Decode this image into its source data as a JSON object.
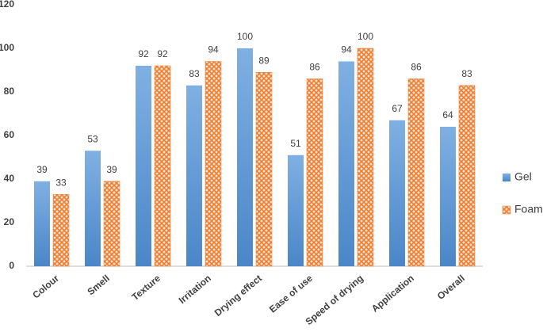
{
  "chart_data": {
    "type": "bar",
    "categories": [
      "Colour",
      "Smell",
      "Texture",
      "Irritation",
      "Drying effect",
      "Ease of use",
      "Speed of drying",
      "Application",
      "Overall"
    ],
    "series": [
      {
        "name": "Gel",
        "color": "#5b9bd5",
        "values": [
          39,
          53,
          92,
          83,
          100,
          51,
          94,
          67,
          64
        ]
      },
      {
        "name": "Foam",
        "color": "#ed7d31",
        "values": [
          33,
          39,
          92,
          94,
          89,
          86,
          100,
          86,
          83
        ]
      }
    ],
    "ylim": [
      0,
      120
    ],
    "yticks": [
      0,
      20,
      40,
      60,
      80,
      100,
      120
    ],
    "grid": false,
    "legend": "right"
  }
}
